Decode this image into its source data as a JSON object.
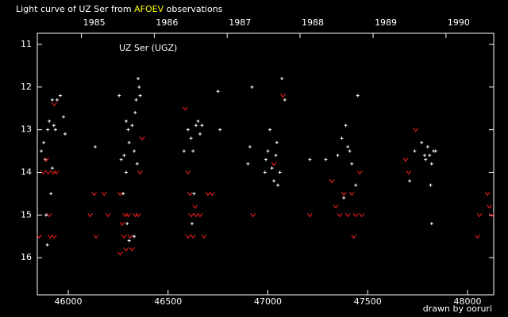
{
  "chart_data": {
    "type": "scatter",
    "title": [
      "Light curve of UZ Ser from",
      "AFOEV",
      "observations"
    ],
    "title_colors": [
      "#ffffff",
      "#ffff00",
      "#ffffff"
    ],
    "annotation": "UZ Ser (UGZ)",
    "credit": "drawn by ooruri",
    "credit_color": "#00ffff",
    "xlim": [
      45845,
      48131
    ],
    "ylim": [
      10.74,
      16.87
    ],
    "y_inverted": true,
    "xticks": [
      46000,
      46500,
      47000,
      47500,
      48000
    ],
    "yticks": [
      11,
      12,
      13,
      14,
      15,
      16
    ],
    "x2ticks": [
      {
        "value": 46066,
        "label": "1985"
      },
      {
        "value": 46431,
        "label": "1986"
      },
      {
        "value": 46796,
        "label": "1987"
      },
      {
        "value": 47161,
        "label": "1988"
      },
      {
        "value": 47527,
        "label": "1989"
      },
      {
        "value": 47892,
        "label": "1990"
      }
    ],
    "series": [
      {
        "color": "#ffffff",
        "marker": "plus",
        "x": [
          45865,
          45877,
          45885,
          45897,
          45905,
          45913,
          45920,
          45889,
          45928,
          45936,
          45920,
          45944,
          45960,
          45976,
          45984,
          45895,
          46135,
          46255,
          46265,
          46280,
          46290,
          46300,
          46305,
          46320,
          46330,
          46335,
          46340,
          46350,
          46355,
          46360,
          46345,
          46275,
          46295,
          46305,
          46330,
          46290,
          46580,
          46600,
          46615,
          46625,
          46640,
          46650,
          46660,
          46670,
          46630,
          46620,
          46750,
          46760,
          46900,
          46920,
          46910,
          46990,
          47000,
          47010,
          47020,
          47030,
          47040,
          47050,
          47060,
          47070,
          47085,
          46985,
          47045,
          47210,
          47290,
          47350,
          47370,
          47390,
          47400,
          47410,
          47420,
          47440,
          47450,
          47380,
          47710,
          47735,
          47770,
          47785,
          47790,
          47800,
          47810,
          47820,
          47830,
          47815,
          47820,
          47840
        ],
        "values": [
          13.5,
          13.3,
          13.7,
          13.0,
          12.8,
          14.5,
          13.9,
          15.0,
          12.9,
          13.0,
          12.3,
          12.3,
          12.2,
          12.7,
          13.1,
          15.7,
          13.4,
          12.2,
          13.7,
          13.6,
          12.8,
          13.0,
          13.3,
          12.9,
          13.5,
          12.6,
          12.3,
          11.8,
          12.0,
          12.2,
          13.8,
          14.5,
          15.2,
          15.6,
          15.5,
          14.0,
          13.5,
          13.0,
          13.2,
          13.5,
          12.9,
          12.8,
          13.1,
          12.9,
          14.5,
          15.2,
          12.1,
          13.0,
          13.8,
          12.0,
          13.4,
          13.7,
          13.5,
          13.0,
          13.9,
          14.2,
          13.6,
          14.3,
          14.0,
          11.8,
          12.3,
          14.0,
          13.3,
          13.7,
          13.7,
          13.6,
          13.2,
          12.9,
          13.4,
          13.5,
          13.8,
          14.3,
          12.2,
          14.6,
          14.2,
          13.5,
          13.3,
          13.6,
          13.7,
          13.4,
          13.6,
          13.8,
          13.5,
          14.3,
          15.2,
          13.5
        ]
      },
      {
        "color": "#ff2020",
        "marker": "v",
        "x": [
          45855,
          45875,
          45900,
          45925,
          45940,
          45910,
          45930,
          45905,
          45930,
          45890,
          46110,
          46130,
          46140,
          46180,
          46200,
          46260,
          46270,
          46280,
          46285,
          46300,
          46310,
          46320,
          46335,
          46350,
          46360,
          46370,
          46290,
          46260,
          46585,
          46600,
          46610,
          46615,
          46625,
          46640,
          46660,
          46680,
          46700,
          46720,
          46600,
          46635,
          46925,
          47075,
          47030,
          47210,
          47320,
          47340,
          47360,
          47380,
          47400,
          47420,
          47430,
          47460,
          47470,
          47440,
          47690,
          47740,
          47705,
          48050,
          48060,
          48100,
          48120,
          48110
        ],
        "values": [
          15.5,
          14.0,
          14.0,
          14.0,
          14.0,
          15.5,
          15.5,
          15.0,
          12.4,
          13.7,
          15.0,
          14.5,
          15.5,
          14.5,
          15.0,
          14.5,
          15.2,
          15.5,
          15.0,
          15.0,
          15.5,
          15.8,
          15.0,
          15.0,
          14.0,
          13.2,
          15.8,
          15.9,
          12.5,
          14.0,
          14.5,
          15.0,
          15.5,
          15.0,
          15.0,
          15.5,
          14.5,
          14.5,
          15.5,
          14.8,
          15.0,
          12.2,
          13.8,
          15.0,
          14.2,
          14.8,
          15.0,
          14.5,
          15.0,
          14.5,
          15.5,
          14.0,
          15.0,
          15.0,
          13.7,
          13.0,
          14.0,
          15.5,
          15.0,
          14.5,
          15.0,
          14.8
        ]
      }
    ]
  }
}
